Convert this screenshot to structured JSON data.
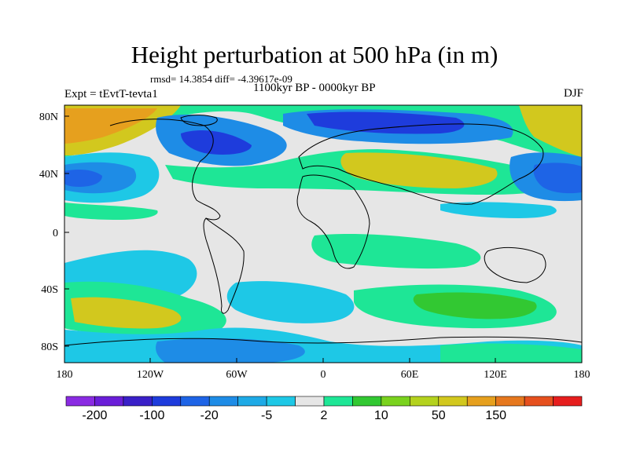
{
  "title": "Height perturbation at 500 hPa (in m)",
  "stats": "rmsd= 14.3854 diff= -4.39617e-09",
  "expt": "Expt = tEvtT-tevta1",
  "period": "1100kyr BP - 0000kyr BP",
  "season": "DJF",
  "lat_ticks": [
    "80N",
    "40N",
    "0",
    "40S",
    "80S"
  ],
  "lon_ticks": [
    "180",
    "120W",
    "60W",
    "0",
    "60E",
    "120E",
    "180"
  ],
  "colorbar": {
    "colors": [
      "#8a2be2",
      "#6a1ed8",
      "#3a20c8",
      "#1e3cdc",
      "#1e64e6",
      "#1e8ce6",
      "#1eaae6",
      "#1ec8e6",
      "#e6e6e6",
      "#1ee696",
      "#32c832",
      "#7ad21e",
      "#b4d21e",
      "#d2c81e",
      "#e6a01e",
      "#e6781e",
      "#e6501e",
      "#e61e1e"
    ],
    "labels": [
      "-200",
      "-100",
      "-20",
      "-5",
      "2",
      "10",
      "50",
      "150"
    ]
  },
  "colors": {
    "strong_neg": "#1e3cdc",
    "mid_neg": "#1e8ce6",
    "weak_neg": "#1ec8e6",
    "neutral": "#e6e6e6",
    "weak_pos": "#1ee696",
    "mid_pos": "#32c832",
    "strong_pos": "#d2c81e",
    "very_pos": "#e6781e"
  }
}
